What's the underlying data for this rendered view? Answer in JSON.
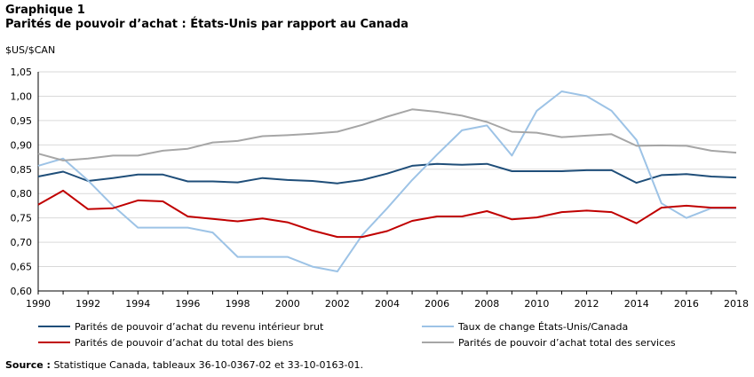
{
  "header": {
    "label": "Graphique  1",
    "title": "Parités de pouvoir d’achat : États-Unis par rapport au Canada"
  },
  "source": {
    "label": "Source :",
    "text": " Statistique  Canada, tableaux 36-10-0367-02 et 33-10-0163-01."
  },
  "chart_data": {
    "type": "line",
    "ylabel": "$US/$CAN",
    "xlabel": "",
    "x": [
      1990,
      1991,
      1992,
      1993,
      1994,
      1995,
      1996,
      1997,
      1998,
      1999,
      2000,
      2001,
      2002,
      2003,
      2004,
      2005,
      2006,
      2007,
      2008,
      2009,
      2010,
      2011,
      2012,
      2013,
      2014,
      2015,
      2016,
      2017,
      2018
    ],
    "xticks": [
      "1990",
      "1992",
      "1994",
      "1996",
      "1998",
      "2000",
      "2002",
      "2004",
      "2006",
      "2008",
      "2010",
      "2012",
      "2014",
      "2016",
      "2018"
    ],
    "ylim": [
      0.6,
      1.05
    ],
    "yticks": [
      "0,60",
      "0,65",
      "0,70",
      "0,75",
      "0,80",
      "0,85",
      "0,90",
      "0,95",
      "1,00",
      "1,05"
    ],
    "grid": "horizontal",
    "legend_placement": "bottom",
    "series": [
      {
        "name": "Parités de pouvoir d’achat du revenu intérieur brut",
        "color": "#1f4e79",
        "values": [
          0.835,
          0.845,
          0.826,
          0.832,
          0.839,
          0.839,
          0.825,
          0.825,
          0.823,
          0.832,
          0.828,
          0.826,
          0.821,
          0.828,
          0.841,
          0.857,
          0.861,
          0.859,
          0.861,
          0.846,
          0.846,
          0.846,
          0.848,
          0.848,
          0.822,
          0.838,
          0.84,
          0.835,
          0.833
        ]
      },
      {
        "name": "Taux de change États-Unis/Canada",
        "color": "#9dc3e6",
        "values": [
          0.857,
          0.872,
          0.827,
          0.775,
          0.73,
          0.73,
          0.73,
          0.72,
          0.67,
          0.67,
          0.67,
          0.65,
          0.64,
          0.715,
          0.77,
          0.828,
          0.88,
          0.93,
          0.94,
          0.878,
          0.97,
          1.01,
          1.0,
          0.97,
          0.91,
          0.78,
          0.75,
          0.77,
          0.77
        ]
      },
      {
        "name": "Parités de pouvoir d’achat du total des biens",
        "color": "#c00000",
        "values": [
          0.777,
          0.806,
          0.768,
          0.77,
          0.786,
          0.784,
          0.753,
          0.748,
          0.743,
          0.749,
          0.741,
          0.724,
          0.711,
          0.711,
          0.723,
          0.744,
          0.753,
          0.753,
          0.764,
          0.747,
          0.751,
          0.762,
          0.765,
          0.762,
          0.739,
          0.771,
          0.775,
          0.771,
          0.771
        ]
      },
      {
        "name": "Parités de pouvoir d’achat total des services",
        "color": "#a6a6a6",
        "values": [
          0.882,
          0.868,
          0.872,
          0.878,
          0.878,
          0.888,
          0.892,
          0.905,
          0.908,
          0.918,
          0.92,
          0.923,
          0.927,
          0.941,
          0.958,
          0.973,
          0.968,
          0.96,
          0.947,
          0.927,
          0.925,
          0.916,
          0.919,
          0.922,
          0.898,
          0.899,
          0.898,
          0.888,
          0.884
        ]
      }
    ]
  }
}
